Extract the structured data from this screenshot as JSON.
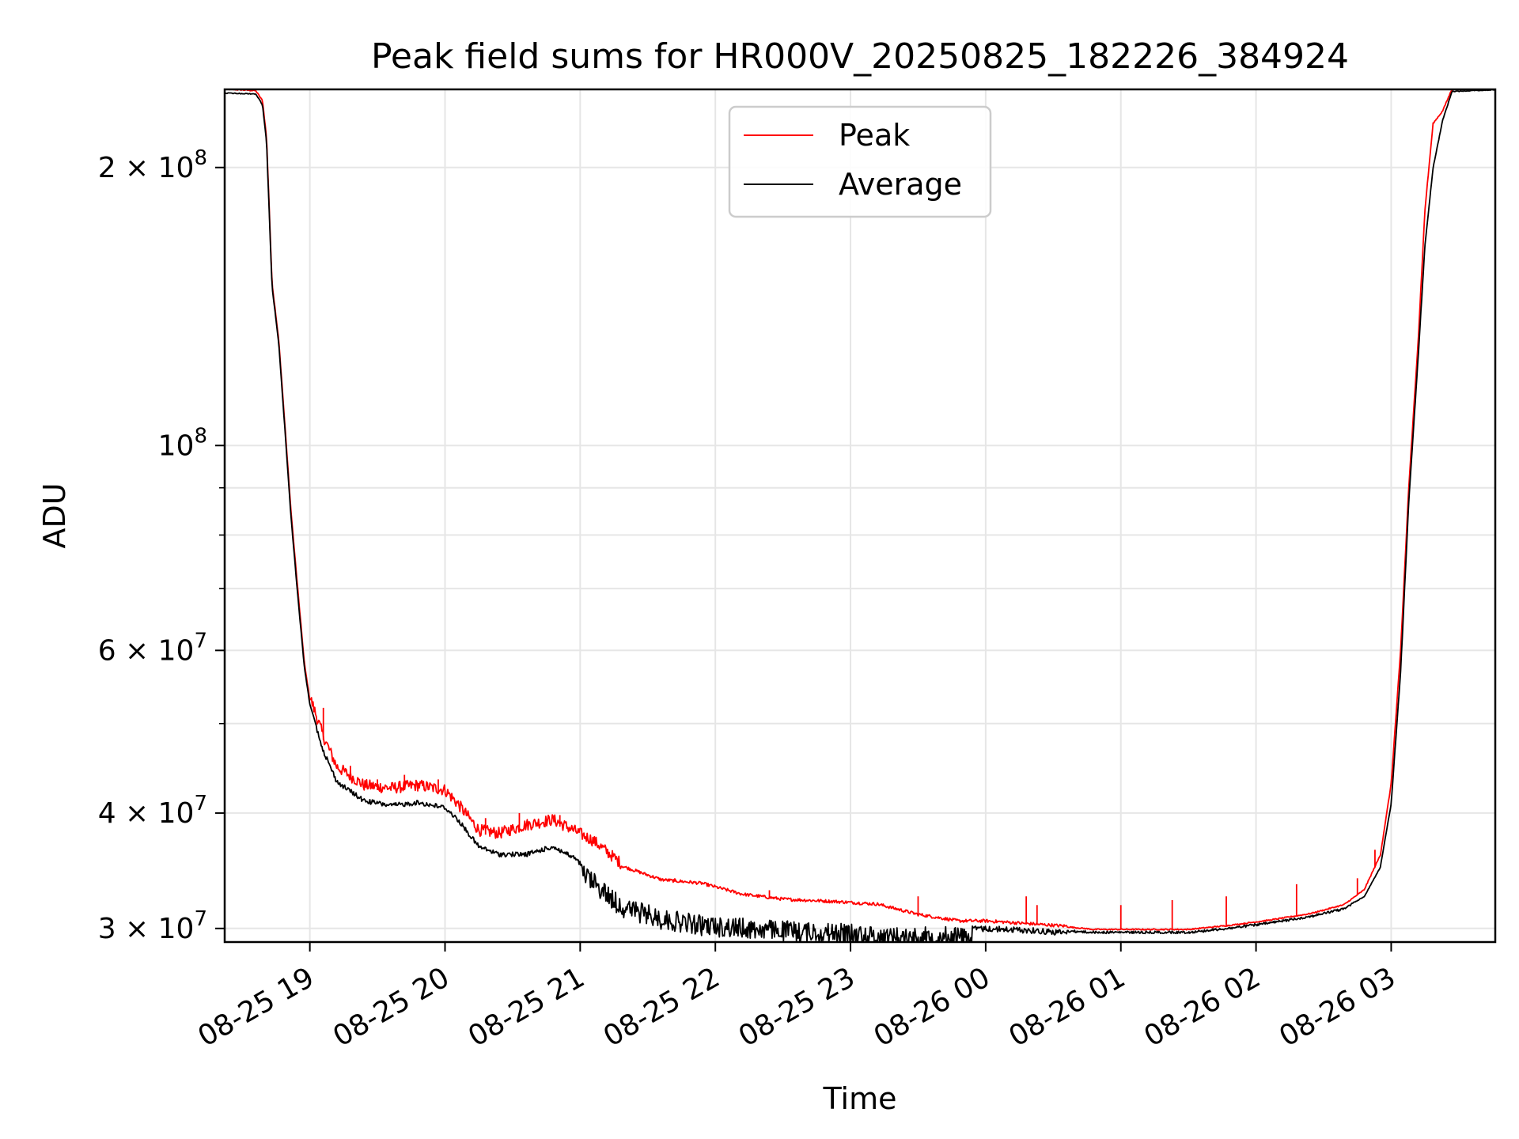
{
  "chart_data": {
    "type": "line",
    "title": "Peak field sums for HR000V_20250825_182226_384924",
    "xlabel": "Time",
    "ylabel": "ADU",
    "yscale": "log",
    "grid": true,
    "legend_position": "upper center",
    "xlim_hours": [
      18.37,
      27.77
    ],
    "ylim": [
      29000000,
      243000000
    ],
    "x_ticks": [
      {
        "label": "08-25 19",
        "hour": 19
      },
      {
        "label": "08-25 20",
        "hour": 20
      },
      {
        "label": "08-25 21",
        "hour": 21
      },
      {
        "label": "08-25 22",
        "hour": 22
      },
      {
        "label": "08-25 23",
        "hour": 23
      },
      {
        "label": "08-26 00",
        "hour": 24
      },
      {
        "label": "08-26 01",
        "hour": 25
      },
      {
        "label": "08-26 02",
        "hour": 26
      },
      {
        "label": "08-26 03",
        "hour": 27
      }
    ],
    "y_ticks": [
      {
        "value": 200000000,
        "mant": "2",
        "exp": "8"
      },
      {
        "value": 100000000,
        "mant": "",
        "exp": "8"
      },
      {
        "value": 60000000,
        "mant": "6",
        "exp": "7"
      },
      {
        "value": 40000000,
        "mant": "4",
        "exp": "7"
      },
      {
        "value": 30000000,
        "mant": "3",
        "exp": "7"
      }
    ],
    "y_minor_ticks": [
      50000000,
      70000000,
      80000000,
      90000000
    ],
    "series": [
      {
        "name": "Peak",
        "color": "#ff0000",
        "points": [
          [
            18.37,
            243000000
          ],
          [
            18.6,
            242000000
          ],
          [
            18.65,
            236000000
          ],
          [
            18.68,
            215000000
          ],
          [
            18.7,
            180000000
          ],
          [
            18.72,
            150000000
          ],
          [
            18.77,
            130000000
          ],
          [
            18.82,
            103000000
          ],
          [
            18.86,
            85000000
          ],
          [
            18.91,
            70000000
          ],
          [
            18.96,
            58000000
          ],
          [
            19.0,
            53000000
          ],
          [
            19.1,
            48000000
          ],
          [
            19.2,
            44500000
          ],
          [
            19.4,
            42500000
          ],
          [
            19.6,
            42200000
          ],
          [
            19.8,
            42500000
          ],
          [
            20.0,
            42000000
          ],
          [
            20.1,
            40500000
          ],
          [
            20.25,
            38000000
          ],
          [
            20.4,
            37700000
          ],
          [
            20.6,
            38500000
          ],
          [
            20.8,
            39000000
          ],
          [
            20.95,
            38000000
          ],
          [
            21.1,
            37000000
          ],
          [
            21.3,
            35000000
          ],
          [
            21.6,
            33800000
          ],
          [
            21.9,
            33500000
          ],
          [
            22.2,
            32600000
          ],
          [
            22.5,
            32200000
          ],
          [
            22.9,
            32000000
          ],
          [
            23.2,
            31800000
          ],
          [
            23.5,
            31000000
          ],
          [
            23.8,
            30500000
          ],
          [
            24.0,
            30500000
          ],
          [
            24.3,
            30300000
          ],
          [
            24.6,
            30100000
          ],
          [
            24.8,
            29900000
          ],
          [
            25.0,
            29900000
          ],
          [
            25.3,
            29900000
          ],
          [
            25.5,
            29900000
          ],
          [
            25.8,
            30200000
          ],
          [
            26.1,
            30600000
          ],
          [
            26.4,
            31100000
          ],
          [
            26.65,
            31800000
          ],
          [
            26.8,
            33000000
          ],
          [
            26.92,
            36000000
          ],
          [
            27.0,
            43000000
          ],
          [
            27.07,
            60000000
          ],
          [
            27.13,
            90000000
          ],
          [
            27.2,
            130000000
          ],
          [
            27.25,
            180000000
          ],
          [
            27.31,
            223000000
          ],
          [
            27.38,
            230000000
          ],
          [
            27.45,
            243000000
          ],
          [
            27.77,
            243000000
          ]
        ],
        "spikes": [
          [
            19.1,
            52000000
          ],
          [
            19.3,
            45000000
          ],
          [
            19.5,
            43500000
          ],
          [
            19.7,
            44000000
          ],
          [
            19.95,
            43500000
          ],
          [
            20.3,
            39500000
          ],
          [
            20.55,
            40000000
          ],
          [
            20.85,
            39800000
          ],
          [
            21.7,
            34000000
          ],
          [
            22.4,
            33000000
          ],
          [
            23.5,
            32500000
          ],
          [
            24.3,
            32500000
          ],
          [
            24.38,
            31800000
          ],
          [
            25.0,
            31800000
          ],
          [
            25.38,
            32200000
          ],
          [
            25.78,
            32500000
          ],
          [
            26.3,
            33500000
          ],
          [
            26.75,
            34000000
          ],
          [
            26.88,
            36500000
          ]
        ]
      },
      {
        "name": "Average",
        "color": "#000000",
        "points": [
          [
            18.37,
            241000000
          ],
          [
            18.6,
            240500000
          ],
          [
            18.65,
            234000000
          ],
          [
            18.68,
            213000000
          ],
          [
            18.7,
            178000000
          ],
          [
            18.72,
            149000000
          ],
          [
            18.77,
            129000000
          ],
          [
            18.82,
            102000000
          ],
          [
            18.86,
            84000000
          ],
          [
            18.91,
            69000000
          ],
          [
            18.96,
            57500000
          ],
          [
            19.0,
            52500000
          ],
          [
            19.1,
            47000000
          ],
          [
            19.2,
            43500000
          ],
          [
            19.4,
            41500000
          ],
          [
            19.6,
            41000000
          ],
          [
            19.8,
            41300000
          ],
          [
            20.0,
            40800000
          ],
          [
            20.1,
            39500000
          ],
          [
            20.25,
            37000000
          ],
          [
            20.4,
            36300000
          ],
          [
            20.6,
            36300000
          ],
          [
            20.8,
            37000000
          ],
          [
            20.95,
            36000000
          ],
          [
            21.1,
            34500000
          ],
          [
            21.3,
            32500000
          ],
          [
            21.6,
            31500000
          ],
          [
            21.9,
            31000000
          ],
          [
            22.2,
            30800000
          ],
          [
            22.5,
            30600000
          ],
          [
            22.9,
            30400000
          ],
          [
            23.2,
            30200000
          ],
          [
            23.5,
            30100000
          ],
          [
            23.8,
            30200000
          ],
          [
            24.0,
            30200000
          ],
          [
            24.3,
            30100000
          ],
          [
            24.6,
            29900000
          ],
          [
            24.8,
            29800000
          ],
          [
            25.0,
            29800000
          ],
          [
            25.3,
            29800000
          ],
          [
            25.5,
            29800000
          ],
          [
            25.8,
            30100000
          ],
          [
            26.1,
            30500000
          ],
          [
            26.4,
            31000000
          ],
          [
            26.65,
            31600000
          ],
          [
            26.8,
            32500000
          ],
          [
            26.92,
            35000000
          ],
          [
            27.0,
            41000000
          ],
          [
            27.07,
            57000000
          ],
          [
            27.13,
            87000000
          ],
          [
            27.2,
            125000000
          ],
          [
            27.25,
            165000000
          ],
          [
            27.31,
            200000000
          ],
          [
            27.38,
            225000000
          ],
          [
            27.45,
            242000000
          ],
          [
            27.77,
            243000000
          ]
        ]
      }
    ]
  }
}
